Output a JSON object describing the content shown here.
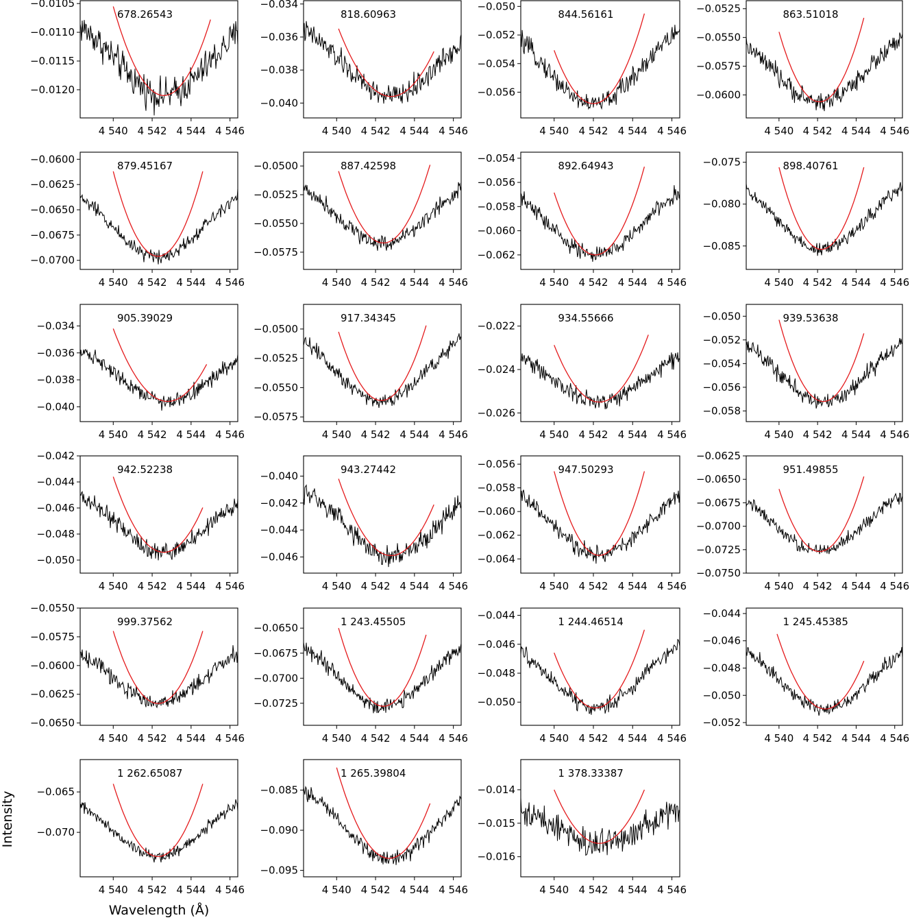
{
  "figure": {
    "xlabel": "Wavelength (Å)",
    "ylabel": "Intensity",
    "colors": {
      "spectrum": "#000000",
      "fit": "#e41a1c",
      "axis": "#000000"
    }
  },
  "chart_data": [
    {
      "type": "line",
      "label": "678.26543",
      "xlim": [
        4538.3,
        4546.4
      ],
      "yticks": [
        "−0.0105",
        "−0.0110",
        "−0.0115",
        "−0.0120"
      ],
      "ytick_values": [
        -0.0105,
        -0.011,
        -0.0115,
        -0.012
      ],
      "ylim": [
        -0.01249,
        -0.01045
      ],
      "xticks": [
        4540,
        4542,
        4544,
        4546
      ],
      "xtick_labels": [
        "4 540",
        "4 542",
        "4 544",
        "4 546"
      ],
      "fit": {
        "center": 4542.6,
        "depth": -0.0121,
        "edge": -0.01055,
        "x_range": [
          4540.0,
          4545.0
        ]
      },
      "continuum": -0.0106,
      "noise": 0.0002
    },
    {
      "type": "line",
      "label": "818.60963",
      "xlim": [
        4538.3,
        4546.4
      ],
      "yticks": [
        "−0.034",
        "−0.036",
        "−0.038",
        "−0.040"
      ],
      "ytick_values": [
        -0.034,
        -0.036,
        -0.038,
        -0.04
      ],
      "ylim": [
        -0.0409,
        -0.0338
      ],
      "xticks": [
        4540,
        4542,
        4544,
        4546
      ],
      "xtick_labels": [
        "4 540",
        "4 542",
        "4 544",
        "4 546"
      ],
      "fit": {
        "center": 4542.8,
        "depth": -0.0396,
        "edge": -0.0355,
        "x_range": [
          4540.1,
          4545.0
        ]
      },
      "continuum": -0.0348,
      "noise": 0.0005
    },
    {
      "type": "line",
      "label": "844.56161",
      "xlim": [
        4538.3,
        4546.4
      ],
      "yticks": [
        "−0.050",
        "−0.052",
        "−0.054",
        "−0.056"
      ],
      "ytick_values": [
        -0.05,
        -0.052,
        -0.054,
        -0.056
      ],
      "ylim": [
        -0.0578,
        -0.0496
      ],
      "xticks": [
        4540,
        4542,
        4544,
        4546
      ],
      "xtick_labels": [
        "4 540",
        "4 542",
        "4 544",
        "4 546"
      ],
      "fit": {
        "center": 4542.0,
        "depth": -0.0568,
        "edge": -0.0505,
        "x_range": [
          4540.0,
          4544.6
        ]
      },
      "continuum": -0.0505,
      "noise": 0.0005
    },
    {
      "type": "line",
      "label": "863.51018",
      "xlim": [
        4538.3,
        4546.4
      ],
      "yticks": [
        "−0.0525",
        "−0.0550",
        "−0.0575",
        "−0.0600"
      ],
      "ytick_values": [
        -0.0525,
        -0.055,
        -0.0575,
        -0.06
      ],
      "ylim": [
        -0.062,
        -0.0518
      ],
      "xticks": [
        4540,
        4542,
        4544,
        4546
      ],
      "xtick_labels": [
        "4 540",
        "4 542",
        "4 544",
        "4 546"
      ],
      "fit": {
        "center": 4542.1,
        "depth": -0.0606,
        "edge": -0.0533,
        "x_range": [
          4540.0,
          4544.4
        ]
      },
      "continuum": -0.0538,
      "noise": 0.0006
    },
    {
      "type": "line",
      "label": "879.45167",
      "xlim": [
        4538.3,
        4546.4
      ],
      "yticks": [
        "−0.0600",
        "−0.0625",
        "−0.0650",
        "−0.0675",
        "−0.0700"
      ],
      "ytick_values": [
        -0.06,
        -0.0625,
        -0.065,
        -0.0675,
        -0.07
      ],
      "ylim": [
        -0.0709,
        -0.0593
      ],
      "xticks": [
        4540,
        4542,
        4544,
        4546
      ],
      "xtick_labels": [
        "4 540",
        "4 542",
        "4 544",
        "4 546"
      ],
      "fit": {
        "center": 4542.3,
        "depth": -0.0696,
        "edge": -0.0612,
        "x_range": [
          4540.0,
          4544.6
        ]
      },
      "continuum": -0.0618,
      "noise": 0.0005
    },
    {
      "type": "line",
      "label": "887.42598",
      "xlim": [
        4538.3,
        4546.4
      ],
      "yticks": [
        "−0.0500",
        "−0.0525",
        "−0.0550",
        "−0.0575"
      ],
      "ytick_values": [
        -0.05,
        -0.0525,
        -0.055,
        -0.0575
      ],
      "ylim": [
        -0.059,
        -0.0488
      ],
      "xticks": [
        4540,
        4542,
        4544,
        4546
      ],
      "xtick_labels": [
        "4 540",
        "4 542",
        "4 544",
        "4 546"
      ],
      "fit": {
        "center": 4542.4,
        "depth": -0.0567,
        "edge": -0.0499,
        "x_range": [
          4540.1,
          4544.8
        ]
      },
      "continuum": -0.0505,
      "noise": 0.0005
    },
    {
      "type": "line",
      "label": "892.64943",
      "xlim": [
        4538.3,
        4546.4
      ],
      "yticks": [
        "−0.054",
        "−0.056",
        "−0.058",
        "−0.060",
        "−0.062"
      ],
      "ytick_values": [
        -0.054,
        -0.056,
        -0.058,
        -0.06,
        -0.062
      ],
      "ylim": [
        -0.0632,
        -0.0535
      ],
      "xticks": [
        4540,
        4542,
        4544,
        4546
      ],
      "xtick_labels": [
        "4 540",
        "4 542",
        "4 544",
        "4 546"
      ],
      "fit": {
        "center": 4542.1,
        "depth": -0.062,
        "edge": -0.0547,
        "x_range": [
          4540.0,
          4544.6
        ]
      },
      "continuum": -0.0555,
      "noise": 0.0005
    },
    {
      "type": "line",
      "label": "898.40761",
      "xlim": [
        4538.3,
        4546.4
      ],
      "yticks": [
        "−0.075",
        "−0.080",
        "−0.085"
      ],
      "ytick_values": [
        -0.075,
        -0.08,
        -0.085
      ],
      "ylim": [
        -0.0878,
        -0.0738
      ],
      "xticks": [
        4540,
        4542,
        4544,
        4546
      ],
      "xtick_labels": [
        "4 540",
        "4 542",
        "4 544",
        "4 546"
      ],
      "fit": {
        "center": 4542.2,
        "depth": -0.0854,
        "edge": -0.0756,
        "x_range": [
          4540.0,
          4544.4
        ]
      },
      "continuum": -0.0758,
      "noise": 0.0006
    },
    {
      "type": "line",
      "label": "905.39029",
      "xlim": [
        4538.3,
        4546.4
      ],
      "yticks": [
        "−0.034",
        "−0.036",
        "−0.038",
        "−0.040"
      ],
      "ytick_values": [
        -0.034,
        -0.036,
        -0.038,
        -0.04
      ],
      "ylim": [
        -0.0411,
        -0.0324
      ],
      "xticks": [
        4540,
        4542,
        4544,
        4546
      ],
      "xtick_labels": [
        "4 540",
        "4 542",
        "4 544",
        "4 546"
      ],
      "fit": {
        "center": 4542.8,
        "depth": -0.0396,
        "edge": -0.0342,
        "x_range": [
          4540.0,
          4544.8
        ]
      },
      "continuum": -0.035,
      "noise": 0.0004
    },
    {
      "type": "line",
      "label": "917.34345",
      "xlim": [
        4538.3,
        4546.4
      ],
      "yticks": [
        "−0.0500",
        "−0.0525",
        "−0.0550",
        "−0.0575"
      ],
      "ytick_values": [
        -0.05,
        -0.0525,
        -0.055,
        -0.0575
      ],
      "ylim": [
        -0.0579,
        -0.0479
      ],
      "xticks": [
        4540,
        4542,
        4544,
        4546
      ],
      "xtick_labels": [
        "4 540",
        "4 542",
        "4 544",
        "4 546"
      ],
      "fit": {
        "center": 4542.3,
        "depth": -0.0561,
        "edge": -0.0497,
        "x_range": [
          4540.1,
          4544.6
        ]
      },
      "continuum": -0.0493,
      "noise": 0.0005
    },
    {
      "type": "line",
      "label": "934.55666",
      "xlim": [
        4538.3,
        4546.4
      ],
      "yticks": [
        "−0.022",
        "−0.024",
        "−0.026"
      ],
      "ytick_values": [
        -0.022,
        -0.024,
        -0.026
      ],
      "ylim": [
        -0.0264,
        -0.021
      ],
      "xticks": [
        4540,
        4542,
        4544,
        4546
      ],
      "xtick_labels": [
        "4 540",
        "4 542",
        "4 544",
        "4 546"
      ],
      "fit": {
        "center": 4542.3,
        "depth": -0.0255,
        "edge": -0.0224,
        "x_range": [
          4540.0,
          4544.8
        ]
      },
      "continuum": -0.0227,
      "noise": 0.0003
    },
    {
      "type": "line",
      "label": "939.53638",
      "xlim": [
        4538.3,
        4546.4
      ],
      "yticks": [
        "−0.050",
        "−0.052",
        "−0.054",
        "−0.056",
        "−0.058"
      ],
      "ytick_values": [
        -0.05,
        -0.052,
        -0.054,
        -0.056,
        -0.058
      ],
      "ylim": [
        -0.0589,
        -0.049
      ],
      "xticks": [
        4540,
        4542,
        4544,
        4546
      ],
      "xtick_labels": [
        "4 540",
        "4 542",
        "4 544",
        "4 546"
      ],
      "fit": {
        "center": 4542.3,
        "depth": -0.0572,
        "edge": -0.0503,
        "x_range": [
          4540.0,
          4544.4
        ]
      },
      "continuum": -0.0508,
      "noise": 0.0005
    },
    {
      "type": "line",
      "label": "942.52238",
      "xlim": [
        4538.3,
        4546.4
      ],
      "yticks": [
        "−0.042",
        "−0.044",
        "−0.046",
        "−0.048",
        "−0.050"
      ],
      "ytick_values": [
        -0.042,
        -0.044,
        -0.046,
        -0.048,
        -0.05
      ],
      "ylim": [
        -0.051,
        -0.042
      ],
      "xticks": [
        4540,
        4542,
        4544,
        4546
      ],
      "xtick_labels": [
        "4 540",
        "4 542",
        "4 544",
        "4 546"
      ],
      "fit": {
        "center": 4542.6,
        "depth": -0.0494,
        "edge": -0.0436,
        "x_range": [
          4540.0,
          4544.6
        ]
      },
      "continuum": -0.044,
      "noise": 0.0005
    },
    {
      "type": "line",
      "label": "943.27442",
      "xlim": [
        4538.3,
        4546.4
      ],
      "yticks": [
        "−0.040",
        "−0.042",
        "−0.044",
        "−0.046"
      ],
      "ytick_values": [
        -0.04,
        -0.042,
        -0.044,
        -0.046
      ],
      "ylim": [
        -0.0472,
        -0.0385
      ],
      "xticks": [
        4540,
        4542,
        4544,
        4546
      ],
      "xtick_labels": [
        "4 540",
        "4 542",
        "4 544",
        "4 546"
      ],
      "fit": {
        "center": 4542.8,
        "depth": -0.0459,
        "edge": -0.0402,
        "x_range": [
          4540.1,
          4545.0
        ]
      },
      "continuum": -0.0402,
      "noise": 0.0006
    },
    {
      "type": "line",
      "label": "947.50293",
      "xlim": [
        4538.3,
        4546.4
      ],
      "yticks": [
        "−0.056",
        "−0.058",
        "−0.060",
        "−0.062",
        "−0.064"
      ],
      "ytick_values": [
        -0.056,
        -0.058,
        -0.06,
        -0.062,
        -0.064
      ],
      "ylim": [
        -0.0652,
        -0.0553
      ],
      "xticks": [
        4540,
        4542,
        4544,
        4546
      ],
      "xtick_labels": [
        "4 540",
        "4 542",
        "4 544",
        "4 546"
      ],
      "fit": {
        "center": 4542.3,
        "depth": -0.0637,
        "edge": -0.0566,
        "x_range": [
          4540.0,
          4544.6
        ]
      },
      "continuum": -0.057,
      "noise": 0.0005
    },
    {
      "type": "line",
      "label": "951.49855",
      "xlim": [
        4538.3,
        4546.4
      ],
      "yticks": [
        "−0.0625",
        "−0.0650",
        "−0.0675",
        "−0.0700",
        "−0.0725",
        "−0.0750"
      ],
      "ytick_values": [
        -0.0625,
        -0.065,
        -0.0675,
        -0.07,
        -0.0725,
        -0.075
      ],
      "ylim": [
        -0.075,
        -0.0625
      ],
      "xticks": [
        4540,
        4542,
        4544,
        4546
      ],
      "xtick_labels": [
        "4 540",
        "4 542",
        "4 544",
        "4 546"
      ],
      "fit": {
        "center": 4542.1,
        "depth": -0.0727,
        "edge": -0.0647,
        "x_range": [
          4540.0,
          4544.4
        ]
      },
      "continuum": -0.065,
      "noise": 0.0005
    },
    {
      "type": "line",
      "label": "999.37562",
      "xlim": [
        4538.3,
        4546.4
      ],
      "yticks": [
        "−0.0550",
        "−0.0575",
        "−0.0600",
        "−0.0625",
        "−0.0650"
      ],
      "ytick_values": [
        -0.055,
        -0.0575,
        -0.06,
        -0.0625,
        -0.065
      ],
      "ylim": [
        -0.0652,
        -0.055
      ],
      "xticks": [
        4540,
        4542,
        4544,
        4546
      ],
      "xtick_labels": [
        "4 540",
        "4 542",
        "4 544",
        "4 546"
      ],
      "fit": {
        "center": 4542.3,
        "depth": -0.0633,
        "edge": -0.057,
        "x_range": [
          4540.0,
          4544.6
        ]
      },
      "continuum": -0.0575,
      "noise": 0.0005
    },
    {
      "type": "line",
      "label": "1 243.45505",
      "xlim": [
        4538.3,
        4546.4
      ],
      "yticks": [
        "−0.0650",
        "−0.0675",
        "−0.0700",
        "−0.0725"
      ],
      "ytick_values": [
        -0.065,
        -0.0675,
        -0.07,
        -0.0725
      ],
      "ylim": [
        -0.0747,
        -0.063
      ],
      "xticks": [
        4540,
        4542,
        4544,
        4546
      ],
      "xtick_labels": [
        "4 540",
        "4 542",
        "4 544",
        "4 546"
      ],
      "fit": {
        "center": 4542.4,
        "depth": -0.0728,
        "edge": -0.065,
        "x_range": [
          4540.1,
          4544.6
        ]
      },
      "continuum": -0.065,
      "noise": 0.0006
    },
    {
      "type": "line",
      "label": "1 244.46514",
      "xlim": [
        4538.3,
        4546.4
      ],
      "yticks": [
        "−0.044",
        "−0.046",
        "−0.048",
        "−0.050"
      ],
      "ytick_values": [
        -0.044,
        -0.046,
        -0.048,
        -0.05
      ],
      "ylim": [
        -0.0516,
        -0.0435
      ],
      "xticks": [
        4540,
        4542,
        4544,
        4546
      ],
      "xtick_labels": [
        "4 540",
        "4 542",
        "4 544",
        "4 546"
      ],
      "fit": {
        "center": 4542.1,
        "depth": -0.0504,
        "edge": -0.045,
        "x_range": [
          4540.0,
          4544.6
        ]
      },
      "continuum": -0.045,
      "noise": 0.0004
    },
    {
      "type": "line",
      "label": "1 245.45385",
      "xlim": [
        4538.3,
        4546.4
      ],
      "yticks": [
        "−0.044",
        "−0.046",
        "−0.048",
        "−0.050",
        "−0.052"
      ],
      "ytick_values": [
        -0.044,
        -0.046,
        -0.048,
        -0.05,
        -0.052
      ],
      "ylim": [
        -0.0522,
        -0.0436
      ],
      "xticks": [
        4540,
        4542,
        4544,
        4546
      ],
      "xtick_labels": [
        "4 540",
        "4 542",
        "4 544",
        "4 546"
      ],
      "fit": {
        "center": 4542.4,
        "depth": -0.051,
        "edge": -0.0455,
        "x_range": [
          4539.9,
          4544.4
        ]
      },
      "continuum": -0.0455,
      "noise": 0.0004
    },
    {
      "type": "line",
      "label": "1 262.65087",
      "xlim": [
        4538.3,
        4546.4
      ],
      "yticks": [
        "−0.065",
        "−0.070"
      ],
      "ytick_values": [
        -0.065,
        -0.07
      ],
      "ylim": [
        -0.0755,
        -0.061
      ],
      "xticks": [
        4540,
        4542,
        4544,
        4546
      ],
      "xtick_labels": [
        "4 540",
        "4 542",
        "4 544",
        "4 546"
      ],
      "fit": {
        "center": 4542.3,
        "depth": -0.073,
        "edge": -0.064,
        "x_range": [
          4540.0,
          4544.6
        ]
      },
      "continuum": -0.0645,
      "noise": 0.0005
    },
    {
      "type": "line",
      "label": "1 265.39804",
      "xlim": [
        4538.3,
        4546.4
      ],
      "yticks": [
        "−0.085",
        "−0.090",
        "−0.095"
      ],
      "ytick_values": [
        -0.085,
        -0.09,
        -0.095
      ],
      "ylim": [
        -0.0958,
        -0.0812
      ],
      "xticks": [
        4540,
        4542,
        4544,
        4546
      ],
      "xtick_labels": [
        "4 540",
        "4 542",
        "4 544",
        "4 546"
      ],
      "fit": {
        "center": 4542.7,
        "depth": -0.0935,
        "edge": -0.0822,
        "x_range": [
          4540.0,
          4544.8
        ]
      },
      "continuum": -0.0832,
      "noise": 0.0007
    },
    {
      "type": "line",
      "label": "1 378.33387",
      "xlim": [
        4538.3,
        4546.4
      ],
      "yticks": [
        "−0.014",
        "−0.015",
        "−0.016"
      ],
      "ytick_values": [
        -0.014,
        -0.015,
        -0.016
      ],
      "ylim": [
        -0.0166,
        -0.0131
      ],
      "xticks": [
        4540,
        4542,
        4544,
        4546
      ],
      "xtick_labels": [
        "4 540",
        "4 542",
        "4 544",
        "4 546"
      ],
      "fit": {
        "center": 4542.3,
        "depth": -0.0156,
        "edge": -0.014,
        "x_range": [
          4540.0,
          4544.6
        ]
      },
      "continuum": -0.0142,
      "noise": 0.0003
    }
  ]
}
